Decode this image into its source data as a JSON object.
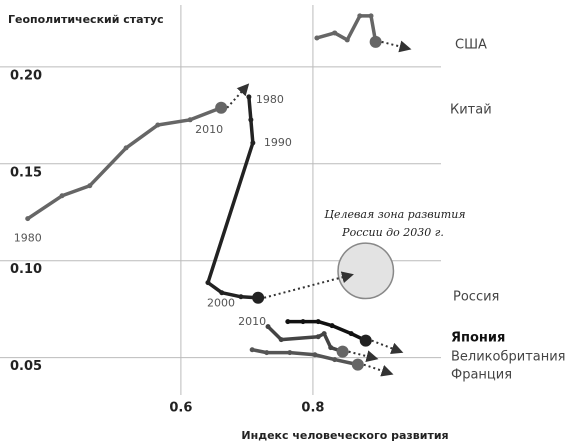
{
  "chart_data": {
    "type": "line",
    "ylabel": "Геополитический статус",
    "xlabel": "Индекс человеческого развития",
    "xlim": [
      0.326,
      0.994
    ],
    "ylim": [
      0.023,
      0.2345
    ],
    "xticks": [
      0.6,
      0.8
    ],
    "yticks": [
      {
        "value": 0.05,
        "label": "0.05"
      },
      {
        "value": 0.1,
        "label": "0.10"
      },
      {
        "value": 0.15,
        "label": "0.15"
      },
      {
        "value": 0.2,
        "label": "0.20"
      }
    ],
    "grid": true,
    "series": [
      {
        "name": "США",
        "color": "#666666",
        "x": [
          0.806,
          0.833,
          0.852,
          0.871,
          0.888,
          0.895
        ],
        "values": [
          0.2149,
          0.2175,
          0.2139,
          0.2263,
          0.2263,
          0.2129
        ],
        "point_labels": [
          null,
          null,
          null,
          null,
          null,
          null
        ]
      },
      {
        "name": "Китай",
        "color": "#666666",
        "x": [
          0.368,
          0.42,
          0.462,
          0.517,
          0.565,
          0.614,
          0.661
        ],
        "values": [
          0.1217,
          0.1335,
          0.1387,
          0.1582,
          0.17,
          0.1727,
          0.1789
        ],
        "point_labels": [
          "1980",
          null,
          null,
          null,
          null,
          null,
          "2010"
        ]
      },
      {
        "name": "Россия",
        "color": "#222222",
        "x": [
          0.703,
          0.706,
          0.709,
          0.641,
          0.662,
          0.691,
          0.717
        ],
        "values": [
          0.1845,
          0.1727,
          0.1608,
          0.0887,
          0.0835,
          0.0814,
          0.0809
        ],
        "point_labels": [
          "1980",
          null,
          "1990",
          "2000",
          null,
          null,
          "2010"
        ]
      },
      {
        "name": "Япония",
        "color": "#111111",
        "x": [
          0.762,
          0.785,
          0.808,
          0.829,
          0.858,
          0.88
        ],
        "values": [
          0.0686,
          0.0686,
          0.0686,
          0.0665,
          0.0624,
          0.0588
        ],
        "point_labels": [
          null,
          null,
          null,
          null,
          null,
          null
        ]
      },
      {
        "name": "Великобритания",
        "color": "#444444",
        "x": [
          0.732,
          0.752,
          0.808,
          0.817,
          0.827,
          0.845
        ],
        "values": [
          0.066,
          0.0593,
          0.0608,
          0.0624,
          0.0552,
          0.0531
        ],
        "point_labels": [
          null,
          null,
          null,
          null,
          null,
          null
        ]
      },
      {
        "name": "Франция",
        "color": "#555555",
        "x": [
          0.708,
          0.73,
          0.765,
          0.803,
          0.833,
          0.868
        ],
        "values": [
          0.0541,
          0.0526,
          0.0526,
          0.0515,
          0.049,
          0.0464
        ],
        "point_labels": [
          null,
          null,
          null,
          null,
          null,
          null
        ]
      }
    ],
    "target_zone": {
      "text": [
        "Целевая зона развития",
        "России до 2030 г."
      ],
      "x": 0.88,
      "y": 0.0948,
      "r": 0.042
    }
  }
}
